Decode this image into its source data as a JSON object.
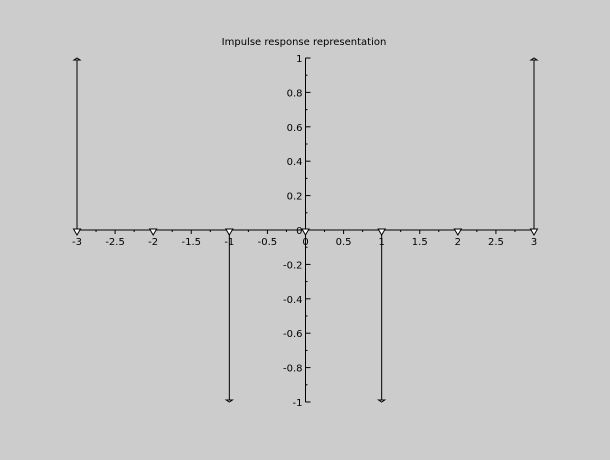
{
  "chart_data": {
    "type": "stem",
    "title": "Impulse response representation",
    "xlabel": "",
    "ylabel": "",
    "xlim": [
      -3,
      3
    ],
    "ylim": [
      -1,
      1
    ],
    "x_ticks": [
      "-3",
      "-2.5",
      "-2",
      "-1.5",
      "-1",
      "-0.5",
      "0",
      "0.5",
      "1",
      "1.5",
      "2",
      "2.5",
      "3"
    ],
    "y_ticks": [
      "1",
      "0.8",
      "0.6",
      "0.4",
      "0.2",
      "0",
      "-0.2",
      "-0.4",
      "-0.6",
      "-0.8",
      "-1"
    ],
    "points": [
      {
        "x": -3,
        "y": 1
      },
      {
        "x": -2,
        "y": 0
      },
      {
        "x": -1,
        "y": -1
      },
      {
        "x": 0,
        "y": 0
      },
      {
        "x": 1,
        "y": -1
      },
      {
        "x": 2,
        "y": 0
      },
      {
        "x": 3,
        "y": 1
      }
    ],
    "grid": false,
    "axes_through_origin": true
  },
  "colors": {
    "background": "#cccccc",
    "axis": "#000000",
    "stem": "#000000",
    "marker_fill": "#ffffff"
  }
}
